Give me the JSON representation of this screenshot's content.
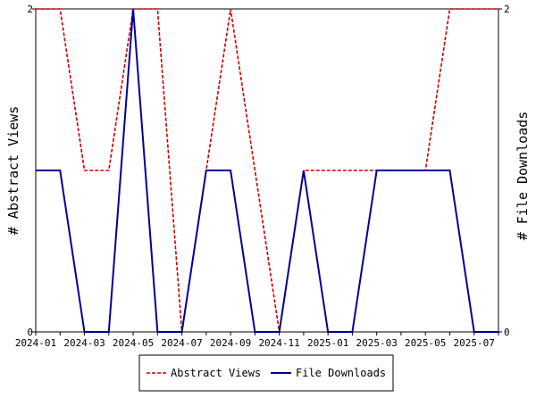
{
  "chart_data": {
    "type": "line",
    "x": [
      "2024-01",
      "2024-02",
      "2024-03",
      "2024-04",
      "2024-05",
      "2024-06",
      "2024-07",
      "2024-08",
      "2024-09",
      "2024-10",
      "2024-11",
      "2024-12",
      "2025-01",
      "2025-02",
      "2025-03",
      "2025-04",
      "2025-05",
      "2025-06",
      "2025-07",
      "2025-08"
    ],
    "x_tick_labels": [
      "2024-01",
      "2024-03",
      "2024-05",
      "2024-07",
      "2024-09",
      "2024-11",
      "2025-01",
      "2025-03",
      "2025-05",
      "2025-07"
    ],
    "ylabel_left": "# Abstract Views",
    "ylabel_right": "# File Downloads",
    "ylim_left": [
      0,
      2
    ],
    "ylim_right": [
      0,
      2
    ],
    "y_tick_labels_left": [
      "0",
      "2"
    ],
    "y_tick_labels_right": [
      "0",
      "2"
    ],
    "grid": false,
    "legend_position": "bottom-center",
    "series": [
      {
        "name": "Abstract Views",
        "axis": "left",
        "style": "dashed",
        "color": "#cc0000",
        "values": [
          2,
          2,
          1,
          1,
          2,
          2,
          0,
          1,
          2,
          1,
          0,
          1,
          1,
          1,
          1,
          1,
          1,
          2,
          2,
          2
        ]
      },
      {
        "name": "File Downloads",
        "axis": "right",
        "style": "solid",
        "color": "#000099",
        "values": [
          1,
          1,
          0,
          0,
          2,
          0,
          0,
          1,
          1,
          0,
          0,
          1,
          0,
          0,
          1,
          1,
          1,
          1,
          0,
          0
        ]
      }
    ]
  }
}
